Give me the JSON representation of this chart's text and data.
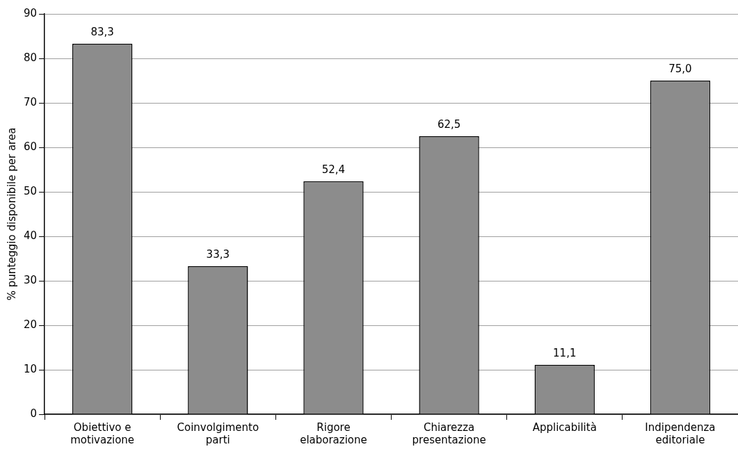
{
  "chart_data": {
    "type": "bar",
    "ylabel": "% punteggio disponibile per area",
    "categories": [
      "Obiettivo e motivazione",
      "Coinvolgimento parti",
      "Rigore elaborazione",
      "Chiarezza presentazione",
      "Applicabilità",
      "Indipendenza editoriale"
    ],
    "values": [
      83.3,
      33.3,
      52.4,
      62.5,
      11.1,
      75.0
    ],
    "value_labels": [
      "83,3",
      "33,3",
      "52,4",
      "62,5",
      "11,1",
      "75,0"
    ],
    "color": "#8c8c8c",
    "ylim": [
      0,
      90
    ],
    "yticks": [
      0,
      10,
      20,
      30,
      40,
      50,
      60,
      70,
      80,
      90
    ],
    "grid": "y",
    "legend": false
  }
}
